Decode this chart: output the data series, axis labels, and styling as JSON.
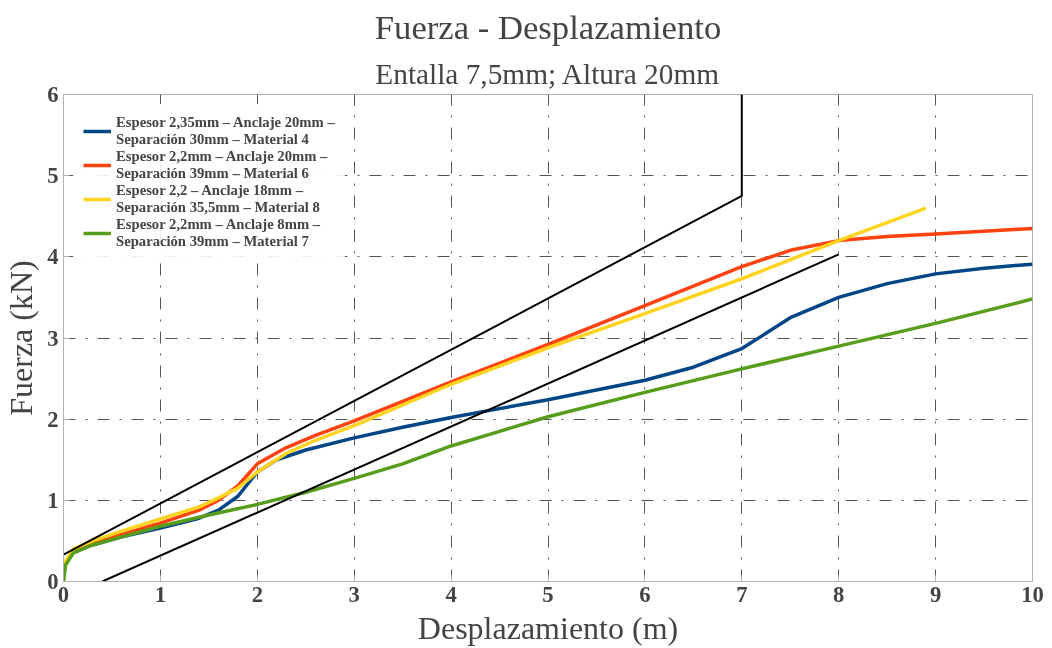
{
  "chart_data": {
    "type": "line",
    "title": "Fuerza - Desplazamiento",
    "subtitle": "Entalla 7,5mm; Altura 20mm",
    "xlabel": "Desplazamiento (m)",
    "ylabel": "Fuerza (kN)",
    "xlim": [
      0,
      10
    ],
    "ylim": [
      0,
      6
    ],
    "xticks": [
      0,
      1,
      2,
      3,
      4,
      5,
      6,
      7,
      8,
      9,
      10
    ],
    "yticks": [
      0,
      1,
      2,
      3,
      4,
      5,
      6
    ],
    "grid": true,
    "legend": "top left",
    "line_style": "solid",
    "marker": "none",
    "series": [
      {
        "name": "Espesor 2,35mm – Anclaje 20mm – Separación 30mm – Material 4",
        "color": "#004586",
        "x": [
          0.3,
          0.6,
          1,
          1.4,
          1.6,
          1.8,
          2,
          2.2,
          2.5,
          3,
          3.5,
          4,
          4.5,
          5,
          5.5,
          6,
          6.5,
          7,
          7.2,
          7.5,
          8,
          8.5,
          9,
          9.5,
          10
        ],
        "values": [
          0.45,
          0.55,
          0.66,
          0.78,
          0.88,
          1.05,
          1.35,
          1.5,
          1.62,
          1.77,
          1.9,
          2.02,
          2.13,
          2.24,
          2.36,
          2.48,
          2.64,
          2.87,
          3.02,
          3.25,
          3.5,
          3.67,
          3.79,
          3.86,
          3.91
        ]
      },
      {
        "name": "Espesor 2,2mm – Anclaje 20mm – Separación 39mm – Material 6",
        "color": "#ff420e",
        "x": [
          0.1,
          0.3,
          0.6,
          1,
          1.4,
          1.6,
          1.8,
          2,
          2.3,
          2.6,
          3,
          4,
          5,
          6,
          7,
          7.5,
          8,
          8.5,
          9,
          10
        ],
        "values": [
          0.38,
          0.48,
          0.58,
          0.72,
          0.88,
          1.0,
          1.18,
          1.45,
          1.65,
          1.8,
          1.98,
          2.46,
          2.92,
          3.4,
          3.88,
          4.08,
          4.2,
          4.25,
          4.28,
          4.35
        ]
      },
      {
        "name": "Espesor 2,2 – Anclaje 18mm – Separación 35,5mm – Material 8",
        "color": "#ffd320",
        "x": [
          0,
          0.02,
          0.1,
          0.3,
          0.6,
          1,
          1.4,
          1.6,
          1.8,
          2,
          2.3,
          2.6,
          3,
          4,
          5,
          6,
          7,
          8,
          8.9
        ],
        "values": [
          0,
          0.25,
          0.4,
          0.5,
          0.62,
          0.77,
          0.92,
          1.03,
          1.15,
          1.35,
          1.58,
          1.74,
          1.92,
          2.43,
          2.88,
          3.3,
          3.73,
          4.2,
          4.6
        ]
      },
      {
        "name": "Espesor 2,2mm – Anclaje 8mm – Separación 39mm – Material 7",
        "color": "#579d1c",
        "x": [
          0,
          0.02,
          0.1,
          0.3,
          0.6,
          1,
          1.5,
          2,
          2.5,
          3,
          3.5,
          4,
          4.5,
          5,
          6,
          7,
          8,
          9,
          10
        ],
        "values": [
          0,
          0.2,
          0.35,
          0.45,
          0.55,
          0.68,
          0.82,
          0.95,
          1.1,
          1.27,
          1.45,
          1.67,
          1.85,
          2.03,
          2.33,
          2.62,
          2.9,
          3.18,
          3.48
        ]
      },
      {
        "color": "#000000",
        "x": [
          0,
          7,
          7
        ],
        "values": [
          0.33,
          4.75,
          6
        ]
      },
      {
        "color": "#000000",
        "x": [
          0.4,
          8
        ],
        "values": [
          0,
          4.03
        ]
      }
    ]
  }
}
